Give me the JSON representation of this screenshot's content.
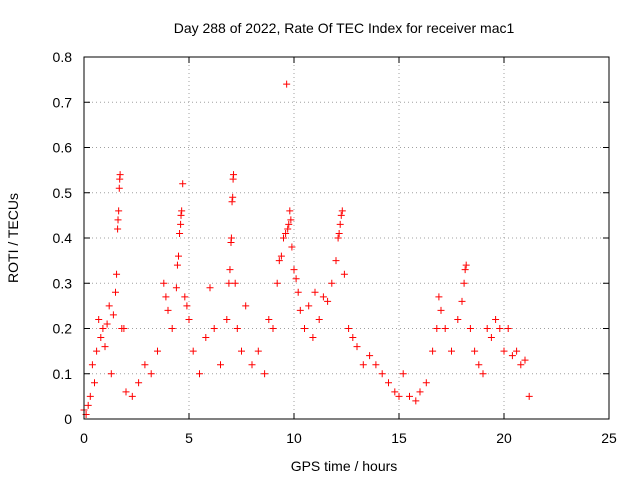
{
  "chart_data": {
    "type": "scatter",
    "title": "Day 288 of 2022, Rate Of TEC Index for receiver mac1",
    "xlabel": "GPS time / hours",
    "ylabel": "ROTI / TECUs",
    "xlim": [
      0,
      25
    ],
    "ylim": [
      0,
      0.8
    ],
    "xticks": [
      0,
      5,
      10,
      15,
      20,
      25
    ],
    "xtick_labels": [
      "0",
      "5",
      "10",
      "15",
      "20",
      "25"
    ],
    "yticks": [
      0,
      0.1,
      0.2,
      0.3,
      0.4,
      0.5,
      0.6,
      0.7,
      0.8
    ],
    "ytick_labels": [
      "0",
      "0.1",
      "0.2",
      "0.3",
      "0.4",
      "0.5",
      "0.6",
      "0.7",
      "0.8"
    ],
    "grid": true,
    "marker": "+",
    "color": "#ff0000",
    "series": [
      {
        "points": [
          [
            0.0,
            0.02
          ],
          [
            0.1,
            0.01
          ],
          [
            0.2,
            0.03
          ],
          [
            0.3,
            0.05
          ],
          [
            0.4,
            0.12
          ],
          [
            0.5,
            0.08
          ],
          [
            0.6,
            0.15
          ],
          [
            0.7,
            0.22
          ],
          [
            0.8,
            0.18
          ],
          [
            0.9,
            0.2
          ],
          [
            1.0,
            0.16
          ],
          [
            1.1,
            0.21
          ],
          [
            1.2,
            0.25
          ],
          [
            1.3,
            0.1
          ],
          [
            1.4,
            0.23
          ],
          [
            1.5,
            0.28
          ],
          [
            1.55,
            0.32
          ],
          [
            1.6,
            0.42
          ],
          [
            1.62,
            0.44
          ],
          [
            1.65,
            0.46
          ],
          [
            1.68,
            0.51
          ],
          [
            1.7,
            0.53
          ],
          [
            1.72,
            0.54
          ],
          [
            1.8,
            0.2
          ],
          [
            1.9,
            0.2
          ],
          [
            2.0,
            0.06
          ],
          [
            2.3,
            0.05
          ],
          [
            2.6,
            0.08
          ],
          [
            2.9,
            0.12
          ],
          [
            3.2,
            0.1
          ],
          [
            3.5,
            0.15
          ],
          [
            3.8,
            0.3
          ],
          [
            3.9,
            0.27
          ],
          [
            4.0,
            0.24
          ],
          [
            4.2,
            0.2
          ],
          [
            4.4,
            0.29
          ],
          [
            4.45,
            0.34
          ],
          [
            4.5,
            0.36
          ],
          [
            4.55,
            0.41
          ],
          [
            4.6,
            0.43
          ],
          [
            4.62,
            0.45
          ],
          [
            4.65,
            0.46
          ],
          [
            4.7,
            0.52
          ],
          [
            4.8,
            0.27
          ],
          [
            4.9,
            0.25
          ],
          [
            5.0,
            0.22
          ],
          [
            5.2,
            0.15
          ],
          [
            5.5,
            0.1
          ],
          [
            5.8,
            0.18
          ],
          [
            6.0,
            0.29
          ],
          [
            6.2,
            0.2
          ],
          [
            6.5,
            0.12
          ],
          [
            6.8,
            0.22
          ],
          [
            6.9,
            0.3
          ],
          [
            6.95,
            0.33
          ],
          [
            7.0,
            0.39
          ],
          [
            7.02,
            0.4
          ],
          [
            7.05,
            0.48
          ],
          [
            7.08,
            0.49
          ],
          [
            7.1,
            0.53
          ],
          [
            7.12,
            0.54
          ],
          [
            7.2,
            0.3
          ],
          [
            7.3,
            0.2
          ],
          [
            7.5,
            0.15
          ],
          [
            7.7,
            0.25
          ],
          [
            8.0,
            0.12
          ],
          [
            8.3,
            0.15
          ],
          [
            8.6,
            0.1
          ],
          [
            8.8,
            0.22
          ],
          [
            9.0,
            0.2
          ],
          [
            9.2,
            0.3
          ],
          [
            9.3,
            0.35
          ],
          [
            9.4,
            0.36
          ],
          [
            9.5,
            0.4
          ],
          [
            9.6,
            0.41
          ],
          [
            9.65,
            0.74
          ],
          [
            9.7,
            0.42
          ],
          [
            9.75,
            0.43
          ],
          [
            9.8,
            0.46
          ],
          [
            9.85,
            0.44
          ],
          [
            9.9,
            0.38
          ],
          [
            10.0,
            0.33
          ],
          [
            10.1,
            0.31
          ],
          [
            10.2,
            0.28
          ],
          [
            10.3,
            0.24
          ],
          [
            10.5,
            0.2
          ],
          [
            10.7,
            0.25
          ],
          [
            10.9,
            0.18
          ],
          [
            11.0,
            0.28
          ],
          [
            11.2,
            0.22
          ],
          [
            11.4,
            0.27
          ],
          [
            11.6,
            0.26
          ],
          [
            11.8,
            0.3
          ],
          [
            12.0,
            0.35
          ],
          [
            12.1,
            0.4
          ],
          [
            12.15,
            0.41
          ],
          [
            12.2,
            0.43
          ],
          [
            12.25,
            0.45
          ],
          [
            12.3,
            0.46
          ],
          [
            12.4,
            0.32
          ],
          [
            12.6,
            0.2
          ],
          [
            12.8,
            0.18
          ],
          [
            13.0,
            0.16
          ],
          [
            13.3,
            0.12
          ],
          [
            13.6,
            0.14
          ],
          [
            13.9,
            0.12
          ],
          [
            14.2,
            0.1
          ],
          [
            14.5,
            0.08
          ],
          [
            14.8,
            0.06
          ],
          [
            15.0,
            0.05
          ],
          [
            15.2,
            0.1
          ],
          [
            15.5,
            0.05
          ],
          [
            15.8,
            0.04
          ],
          [
            16.0,
            0.06
          ],
          [
            16.3,
            0.08
          ],
          [
            16.6,
            0.15
          ],
          [
            16.8,
            0.2
          ],
          [
            16.9,
            0.27
          ],
          [
            17.0,
            0.24
          ],
          [
            17.2,
            0.2
          ],
          [
            17.5,
            0.15
          ],
          [
            17.8,
            0.22
          ],
          [
            18.0,
            0.26
          ],
          [
            18.1,
            0.3
          ],
          [
            18.15,
            0.33
          ],
          [
            18.2,
            0.34
          ],
          [
            18.4,
            0.2
          ],
          [
            18.6,
            0.15
          ],
          [
            18.8,
            0.12
          ],
          [
            19.0,
            0.1
          ],
          [
            19.2,
            0.2
          ],
          [
            19.4,
            0.18
          ],
          [
            19.6,
            0.22
          ],
          [
            19.8,
            0.2
          ],
          [
            20.0,
            0.15
          ],
          [
            20.2,
            0.2
          ],
          [
            20.4,
            0.14
          ],
          [
            20.6,
            0.15
          ],
          [
            20.8,
            0.12
          ],
          [
            21.0,
            0.13
          ],
          [
            21.2,
            0.05
          ]
        ]
      }
    ]
  }
}
